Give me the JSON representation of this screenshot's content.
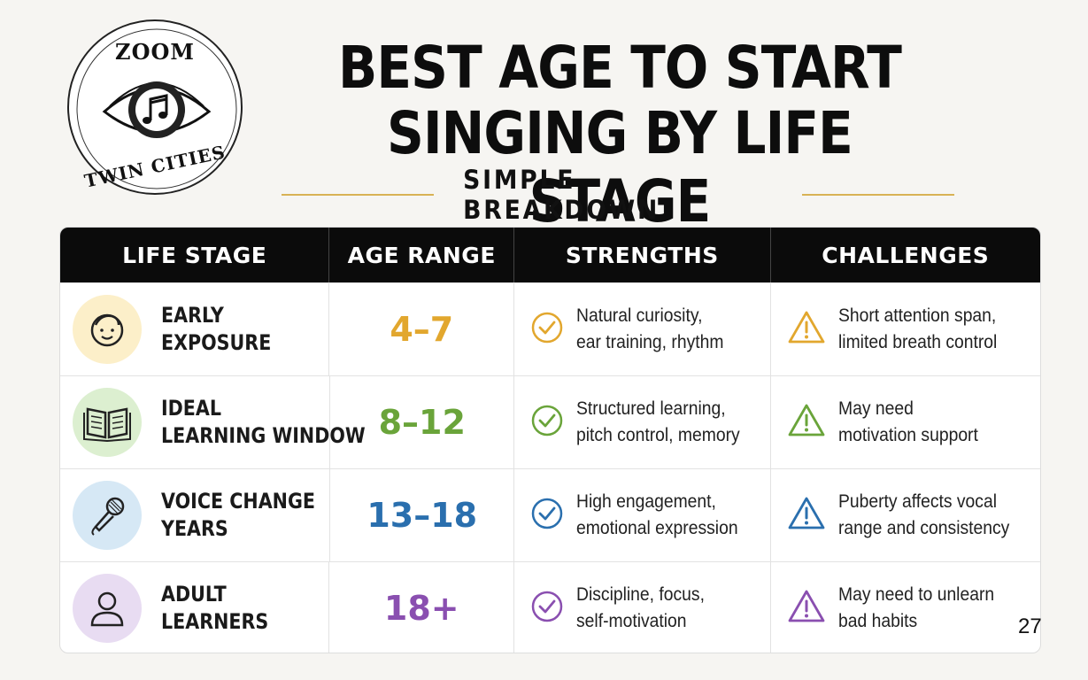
{
  "logo": {
    "top_text": "ZOOM",
    "bottom_text": "TWIN CITIES",
    "icon": "eye-music-note-icon"
  },
  "title": {
    "line1": "BEST AGE TO START",
    "line2": "SINGING BY LIFE STAGE"
  },
  "subtitle": "SIMPLE BREAKDOWN",
  "colors": {
    "accent_gold": "#d8b255",
    "header_bg": "#0b0b0b"
  },
  "table": {
    "headers": [
      "LIFE STAGE",
      "AGE RANGE",
      "STRENGTHS",
      "CHALLENGES"
    ],
    "rows": [
      {
        "stage_line1": "EARLY",
        "stage_line2": "EXPOSURE",
        "icon": "child-face-icon",
        "age": "4–7",
        "color": "#e2a72e",
        "bg": "#fcefc9",
        "strength1": "Natural curiosity,",
        "strength2": "ear training, rhythm",
        "challenge1": "Short attention span,",
        "challenge2": "limited breath control"
      },
      {
        "stage_line1": "IDEAL",
        "stage_line2": "LEARNING WINDOW",
        "icon": "open-book-icon",
        "age": "8–12",
        "color": "#6aa43a",
        "bg": "#dcefd0",
        "strength1": "Structured learning,",
        "strength2": "pitch control, memory",
        "challenge1": "May need",
        "challenge2": "motivation support"
      },
      {
        "stage_line1": "VOICE CHANGE",
        "stage_line2": "YEARS",
        "icon": "microphone-icon",
        "age": "13–18",
        "color": "#2a6fae",
        "bg": "#d6e8f5",
        "strength1": "High engagement,",
        "strength2": "emotional expression",
        "challenge1": "Puberty affects vocal",
        "challenge2": "range and consistency"
      },
      {
        "stage_line1": "ADULT",
        "stage_line2": "LEARNERS",
        "icon": "person-icon",
        "age": "18+",
        "color": "#8a4fb0",
        "bg": "#e8dcf2",
        "strength1": "Discipline, focus,",
        "strength2": "self-motivation",
        "challenge1": "May need to unlearn",
        "challenge2": "bad habits"
      }
    ]
  },
  "page_number": "27"
}
